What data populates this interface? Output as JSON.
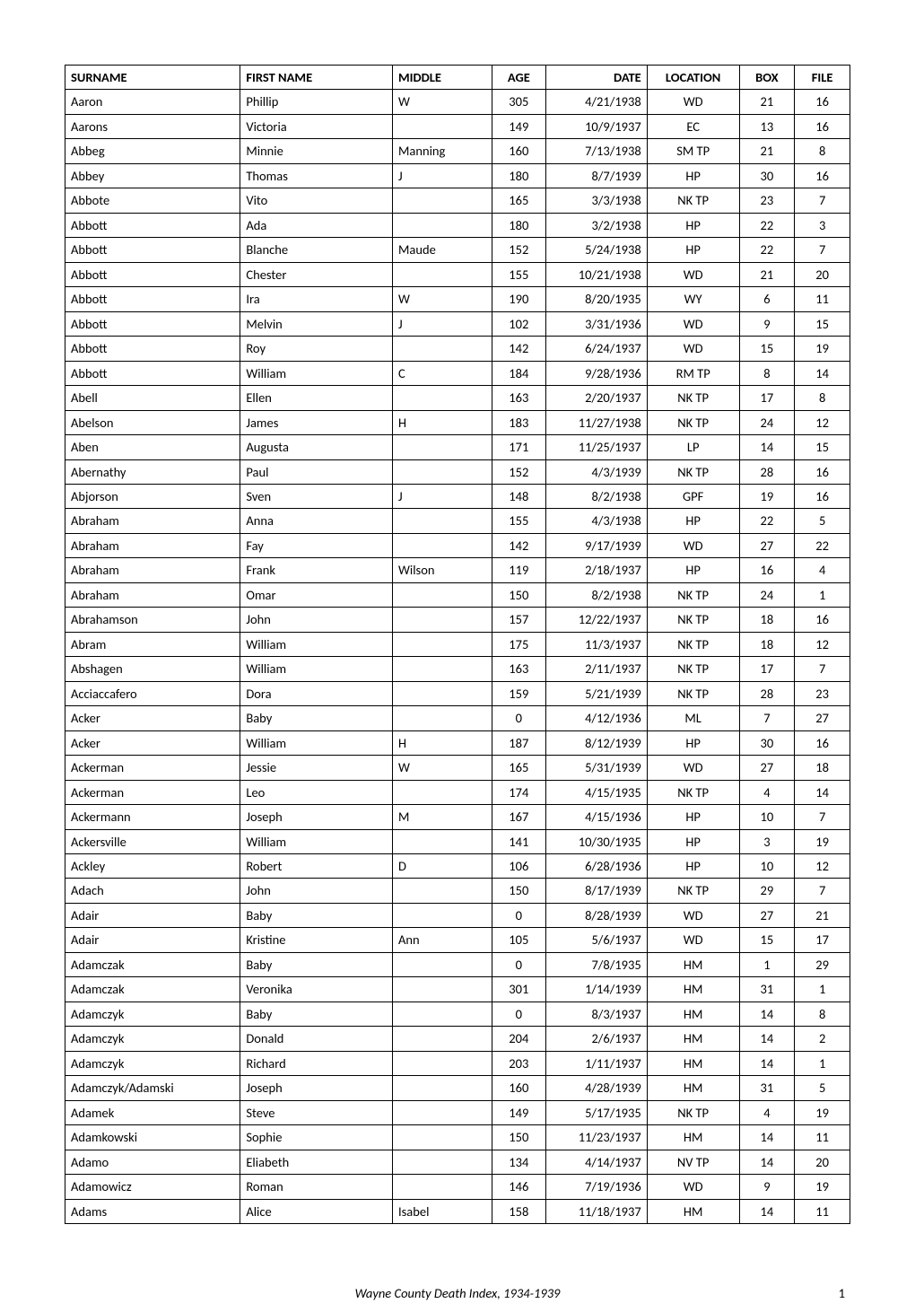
{
  "table": {
    "columns": [
      "SURNAME",
      "FIRST NAME",
      "MIDDLE",
      "AGE",
      "DATE",
      "LOCATION",
      "BOX",
      "FILE"
    ],
    "column_classes": [
      "col-surname",
      "col-firstname",
      "col-middle",
      "col-age",
      "col-date",
      "col-location",
      "col-box",
      "col-file"
    ],
    "rows": [
      [
        "Aaron",
        "Phillip",
        "W",
        "305",
        "4/21/1938",
        "WD",
        "21",
        "16"
      ],
      [
        "Aarons",
        "Victoria",
        "",
        "149",
        "10/9/1937",
        "EC",
        "13",
        "16"
      ],
      [
        "Abbeg",
        "Minnie",
        "Manning",
        "160",
        "7/13/1938",
        "SM TP",
        "21",
        "8"
      ],
      [
        "Abbey",
        "Thomas",
        "J",
        "180",
        "8/7/1939",
        "HP",
        "30",
        "16"
      ],
      [
        "Abbote",
        "Vito",
        "",
        "165",
        "3/3/1938",
        "NK TP",
        "23",
        "7"
      ],
      [
        "Abbott",
        "Ada",
        "",
        "180",
        "3/2/1938",
        "HP",
        "22",
        "3"
      ],
      [
        "Abbott",
        "Blanche",
        "Maude",
        "152",
        "5/24/1938",
        "HP",
        "22",
        "7"
      ],
      [
        "Abbott",
        "Chester",
        "",
        "155",
        "10/21/1938",
        "WD",
        "21",
        "20"
      ],
      [
        "Abbott",
        "Ira",
        "W",
        "190",
        "8/20/1935",
        "WY",
        "6",
        "11"
      ],
      [
        "Abbott",
        "Melvin",
        "J",
        "102",
        "3/31/1936",
        "WD",
        "9",
        "15"
      ],
      [
        "Abbott",
        "Roy",
        "",
        "142",
        "6/24/1937",
        "WD",
        "15",
        "19"
      ],
      [
        "Abbott",
        "William",
        "C",
        "184",
        "9/28/1936",
        "RM TP",
        "8",
        "14"
      ],
      [
        "Abell",
        "Ellen",
        "",
        "163",
        "2/20/1937",
        "NK TP",
        "17",
        "8"
      ],
      [
        "Abelson",
        "James",
        "H",
        "183",
        "11/27/1938",
        "NK TP",
        "24",
        "12"
      ],
      [
        "Aben",
        "Augusta",
        "",
        "171",
        "11/25/1937",
        "LP",
        "14",
        "15"
      ],
      [
        "Abernathy",
        "Paul",
        "",
        "152",
        "4/3/1939",
        "NK TP",
        "28",
        "16"
      ],
      [
        "Abjorson",
        "Sven",
        "J",
        "148",
        "8/2/1938",
        "GPF",
        "19",
        "16"
      ],
      [
        "Abraham",
        "Anna",
        "",
        "155",
        "4/3/1938",
        "HP",
        "22",
        "5"
      ],
      [
        "Abraham",
        "Fay",
        "",
        "142",
        "9/17/1939",
        "WD",
        "27",
        "22"
      ],
      [
        "Abraham",
        "Frank",
        "Wilson",
        "119",
        "2/18/1937",
        "HP",
        "16",
        "4"
      ],
      [
        "Abraham",
        "Omar",
        "",
        "150",
        "8/2/1938",
        "NK TP",
        "24",
        "1"
      ],
      [
        "Abrahamson",
        "John",
        "",
        "157",
        "12/22/1937",
        "NK TP",
        "18",
        "16"
      ],
      [
        "Abram",
        "William",
        "",
        "175",
        "11/3/1937",
        "NK TP",
        "18",
        "12"
      ],
      [
        "Abshagen",
        "William",
        "",
        "163",
        "2/11/1937",
        "NK TP",
        "17",
        "7"
      ],
      [
        "Acciaccafero",
        "Dora",
        "",
        "159",
        "5/21/1939",
        "NK TP",
        "28",
        "23"
      ],
      [
        "Acker",
        "Baby",
        "",
        "0",
        "4/12/1936",
        "ML",
        "7",
        "27"
      ],
      [
        "Acker",
        "William",
        "H",
        "187",
        "8/12/1939",
        "HP",
        "30",
        "16"
      ],
      [
        "Ackerman",
        "Jessie",
        "W",
        "165",
        "5/31/1939",
        "WD",
        "27",
        "18"
      ],
      [
        "Ackerman",
        "Leo",
        "",
        "174",
        "4/15/1935",
        "NK TP",
        "4",
        "14"
      ],
      [
        "Ackermann",
        "Joseph",
        "M",
        "167",
        "4/15/1936",
        "HP",
        "10",
        "7"
      ],
      [
        "Ackersville",
        "William",
        "",
        "141",
        "10/30/1935",
        "HP",
        "3",
        "19"
      ],
      [
        "Ackley",
        "Robert",
        "D",
        "106",
        "6/28/1936",
        "HP",
        "10",
        "12"
      ],
      [
        "Adach",
        "John",
        "",
        "150",
        "8/17/1939",
        "NK TP",
        "29",
        "7"
      ],
      [
        "Adair",
        "Baby",
        "",
        "0",
        "8/28/1939",
        "WD",
        "27",
        "21"
      ],
      [
        "Adair",
        "Kristine",
        "Ann",
        "105",
        "5/6/1937",
        "WD",
        "15",
        "17"
      ],
      [
        "Adamczak",
        "Baby",
        "",
        "0",
        "7/8/1935",
        "HM",
        "1",
        "29"
      ],
      [
        "Adamczak",
        "Veronika",
        "",
        "301",
        "1/14/1939",
        "HM",
        "31",
        "1"
      ],
      [
        "Adamczyk",
        "Baby",
        "",
        "0",
        "8/3/1937",
        "HM",
        "14",
        "8"
      ],
      [
        "Adamczyk",
        "Donald",
        "",
        "204",
        "2/6/1937",
        "HM",
        "14",
        "2"
      ],
      [
        "Adamczyk",
        "Richard",
        "",
        "203",
        "1/11/1937",
        "HM",
        "14",
        "1"
      ],
      [
        "Adamczyk/Adamski",
        "Joseph",
        "",
        "160",
        "4/28/1939",
        "HM",
        "31",
        "5"
      ],
      [
        "Adamek",
        "Steve",
        "",
        "149",
        "5/17/1935",
        "NK TP",
        "4",
        "19"
      ],
      [
        "Adamkowski",
        "Sophie",
        "",
        "150",
        "11/23/1937",
        "HM",
        "14",
        "11"
      ],
      [
        "Adamo",
        "Eliabeth",
        "",
        "134",
        "4/14/1937",
        "NV TP",
        "14",
        "20"
      ],
      [
        "Adamowicz",
        "Roman",
        "",
        "146",
        "7/19/1936",
        "WD",
        "9",
        "19"
      ],
      [
        "Adams",
        "Alice",
        "Isabel",
        "158",
        "11/18/1937",
        "HM",
        "14",
        "11"
      ]
    ]
  },
  "footer": {
    "title": "Wayne County Death Index, 1934-1939",
    "page": "1"
  },
  "styles": {
    "border_color": "#000000",
    "background_color": "#ffffff",
    "font_size_pt": 11,
    "header_font_weight": "bold"
  }
}
